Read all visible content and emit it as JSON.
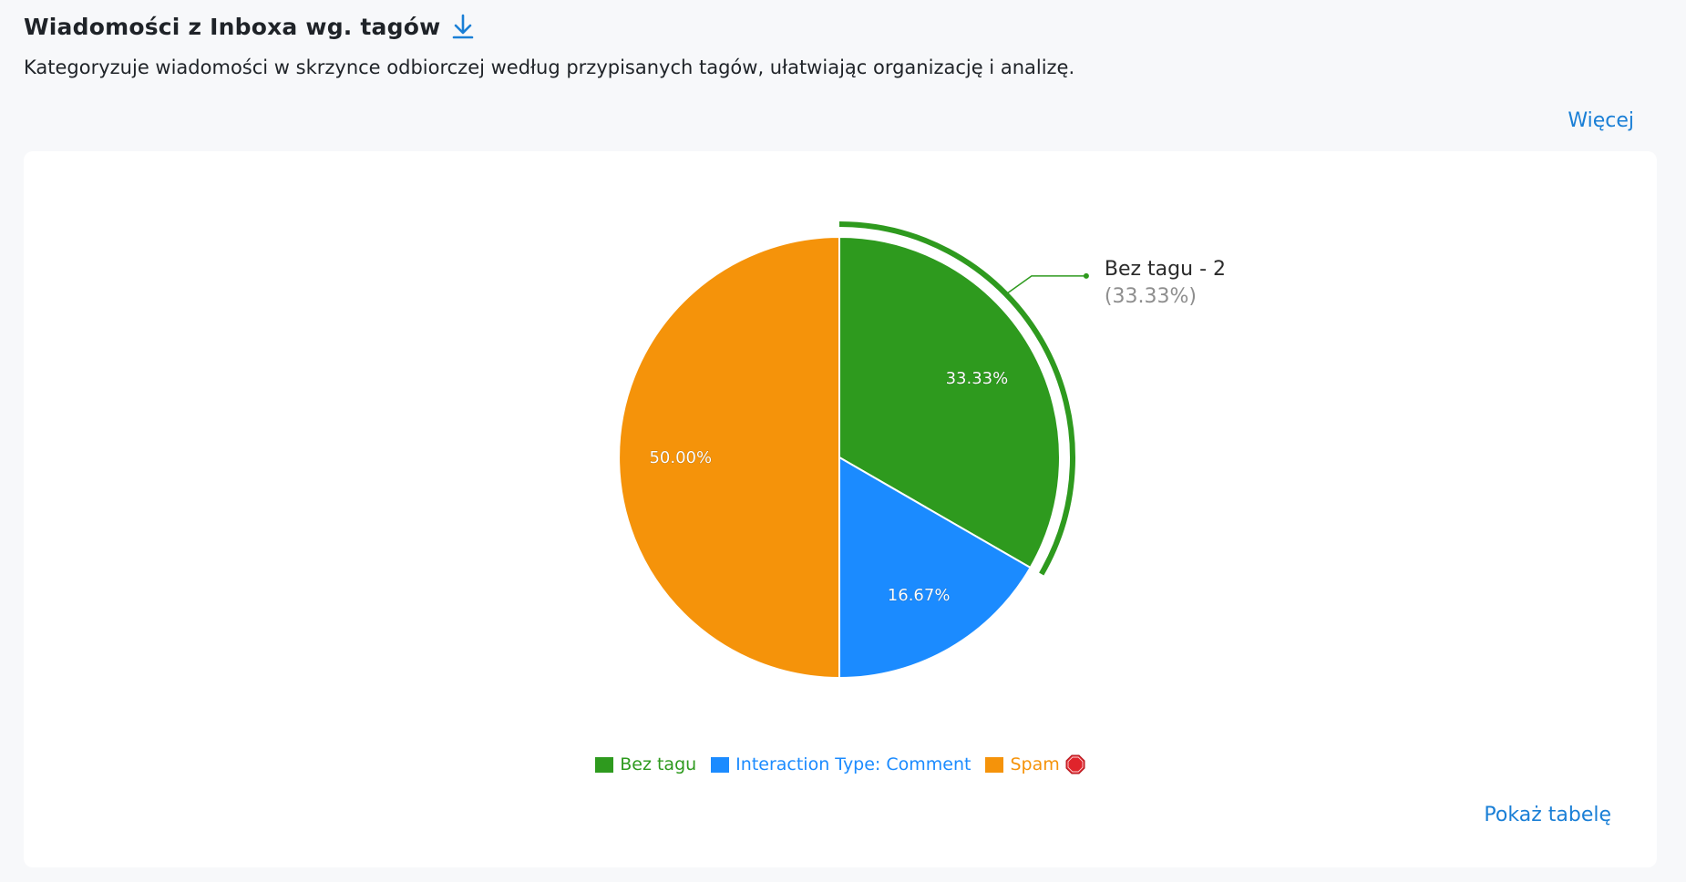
{
  "header": {
    "title": "Wiadomości z Inboxa wg. tagów",
    "subtitle": "Kategoryzuje wiadomości w skrzynce odbiorczej według przypisanych tagów, ułatwiając organizację i analizę.",
    "more_label": "Więcej",
    "download_icon": "download-icon"
  },
  "footer": {
    "table_label": "Pokaż tabelę"
  },
  "colors": {
    "accent": "#1a7fd6",
    "bez_tagu": "#2e9a1e",
    "comment": "#1b8bff",
    "spam": "#f5930a"
  },
  "chart_data": {
    "type": "pie",
    "title": "Wiadomości z Inboxa wg. tagów",
    "categories": [
      "Bez tagu",
      "Interaction Type: Comment",
      "Spam"
    ],
    "values": [
      2,
      1,
      3
    ],
    "percent_labels": [
      "33.33%",
      "16.67%",
      "50.00%"
    ],
    "colors": [
      "#2e9a1e",
      "#1b8bff",
      "#f5930a"
    ],
    "legend_position": "bottom",
    "legend_icons": [
      "",
      "",
      "stop-sign-icon"
    ],
    "highlighted": {
      "index": 0,
      "label": "Bez tagu - 2",
      "percent": "(33.33%)"
    }
  }
}
